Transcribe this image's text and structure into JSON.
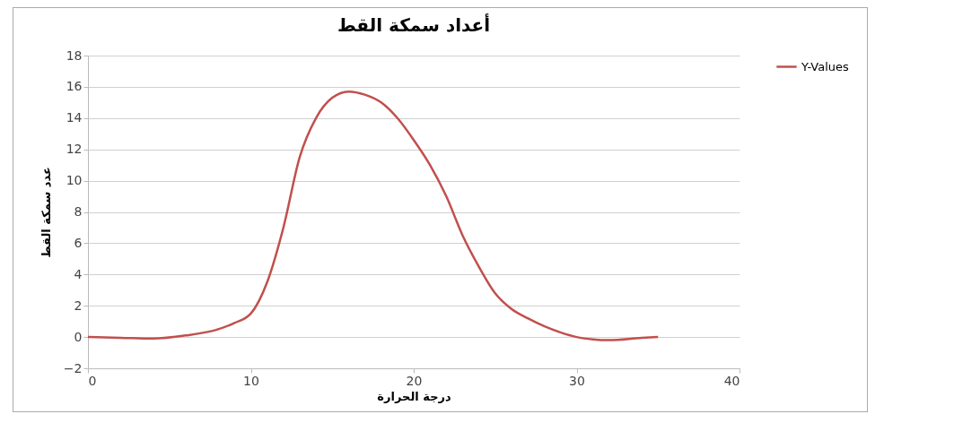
{
  "chart_data": {
    "type": "line",
    "title": "أعداد سمكة القط",
    "xlabel": "درجة الحرارة",
    "ylabel": "عدد سمكة القط",
    "xlim": [
      0,
      40
    ],
    "xticks": [
      0,
      10,
      20,
      30,
      40
    ],
    "ylim": [
      -2,
      18
    ],
    "yticks": [
      -2,
      0,
      2,
      4,
      6,
      8,
      10,
      12,
      14,
      16,
      18
    ],
    "grid": "y",
    "legend": "right",
    "marker": "none",
    "line_style": "solid",
    "series": [
      {
        "name": "Y-Values",
        "color": "#c0504d",
        "x": [
          0,
          2,
          4,
          6,
          8,
          9,
          10,
          11,
          12,
          13,
          14,
          15,
          16,
          17,
          18,
          19,
          20,
          21,
          22,
          23,
          24,
          25,
          26,
          27,
          28,
          29,
          30,
          31,
          32,
          34,
          35
        ],
        "values": [
          0,
          -0.05,
          -0.1,
          0.1,
          0.5,
          0.9,
          1.5,
          3.5,
          7,
          11.5,
          14,
          15.3,
          15.7,
          15.5,
          15,
          14,
          12.6,
          11,
          9,
          6.5,
          4.5,
          2.8,
          1.8,
          1.2,
          0.7,
          0.3,
          0,
          -0.15,
          -0.2,
          -0.05,
          0
        ]
      }
    ]
  }
}
